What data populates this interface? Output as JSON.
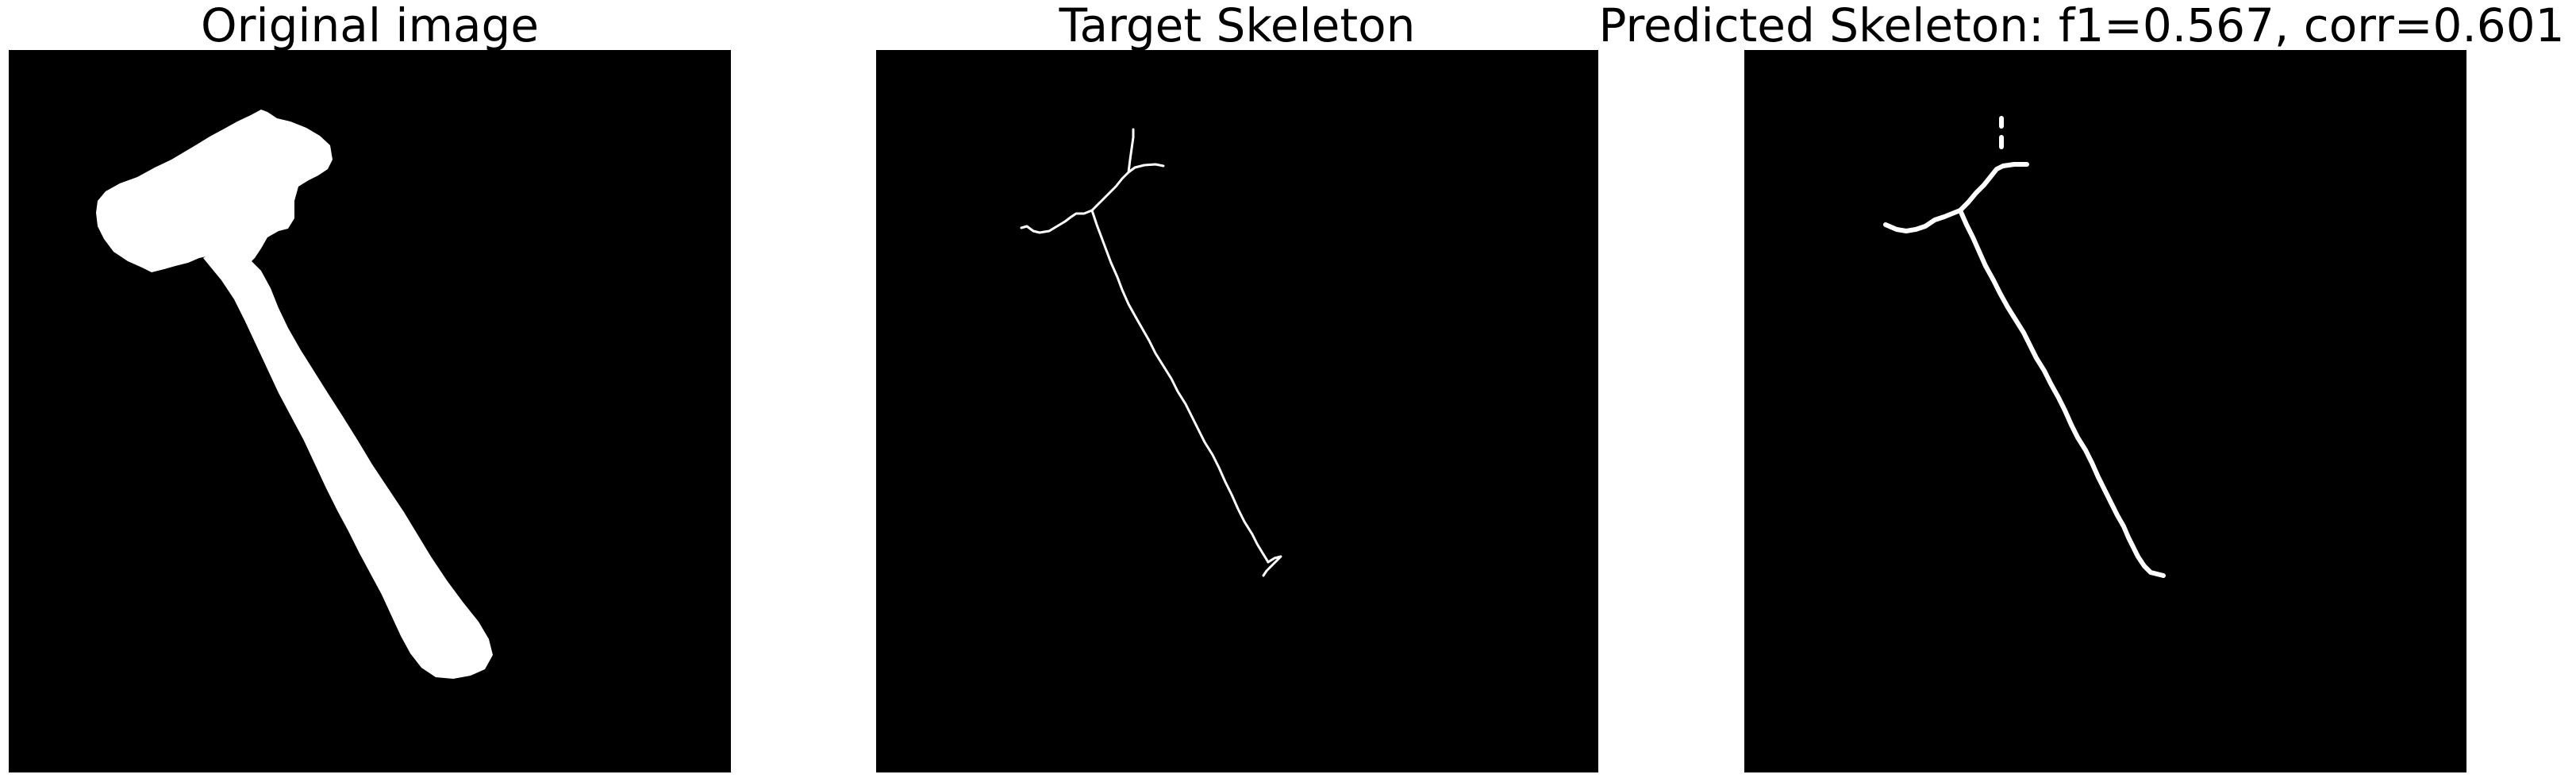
{
  "panels": [
    {
      "title": "Original image"
    },
    {
      "title": "Target Skeleton"
    },
    {
      "title": "Predicted Skeleton: f1=0.567, corr=0.601"
    }
  ],
  "colors": {
    "background": "#000000",
    "foreground": "#ffffff",
    "page": "#ffffff"
  }
}
